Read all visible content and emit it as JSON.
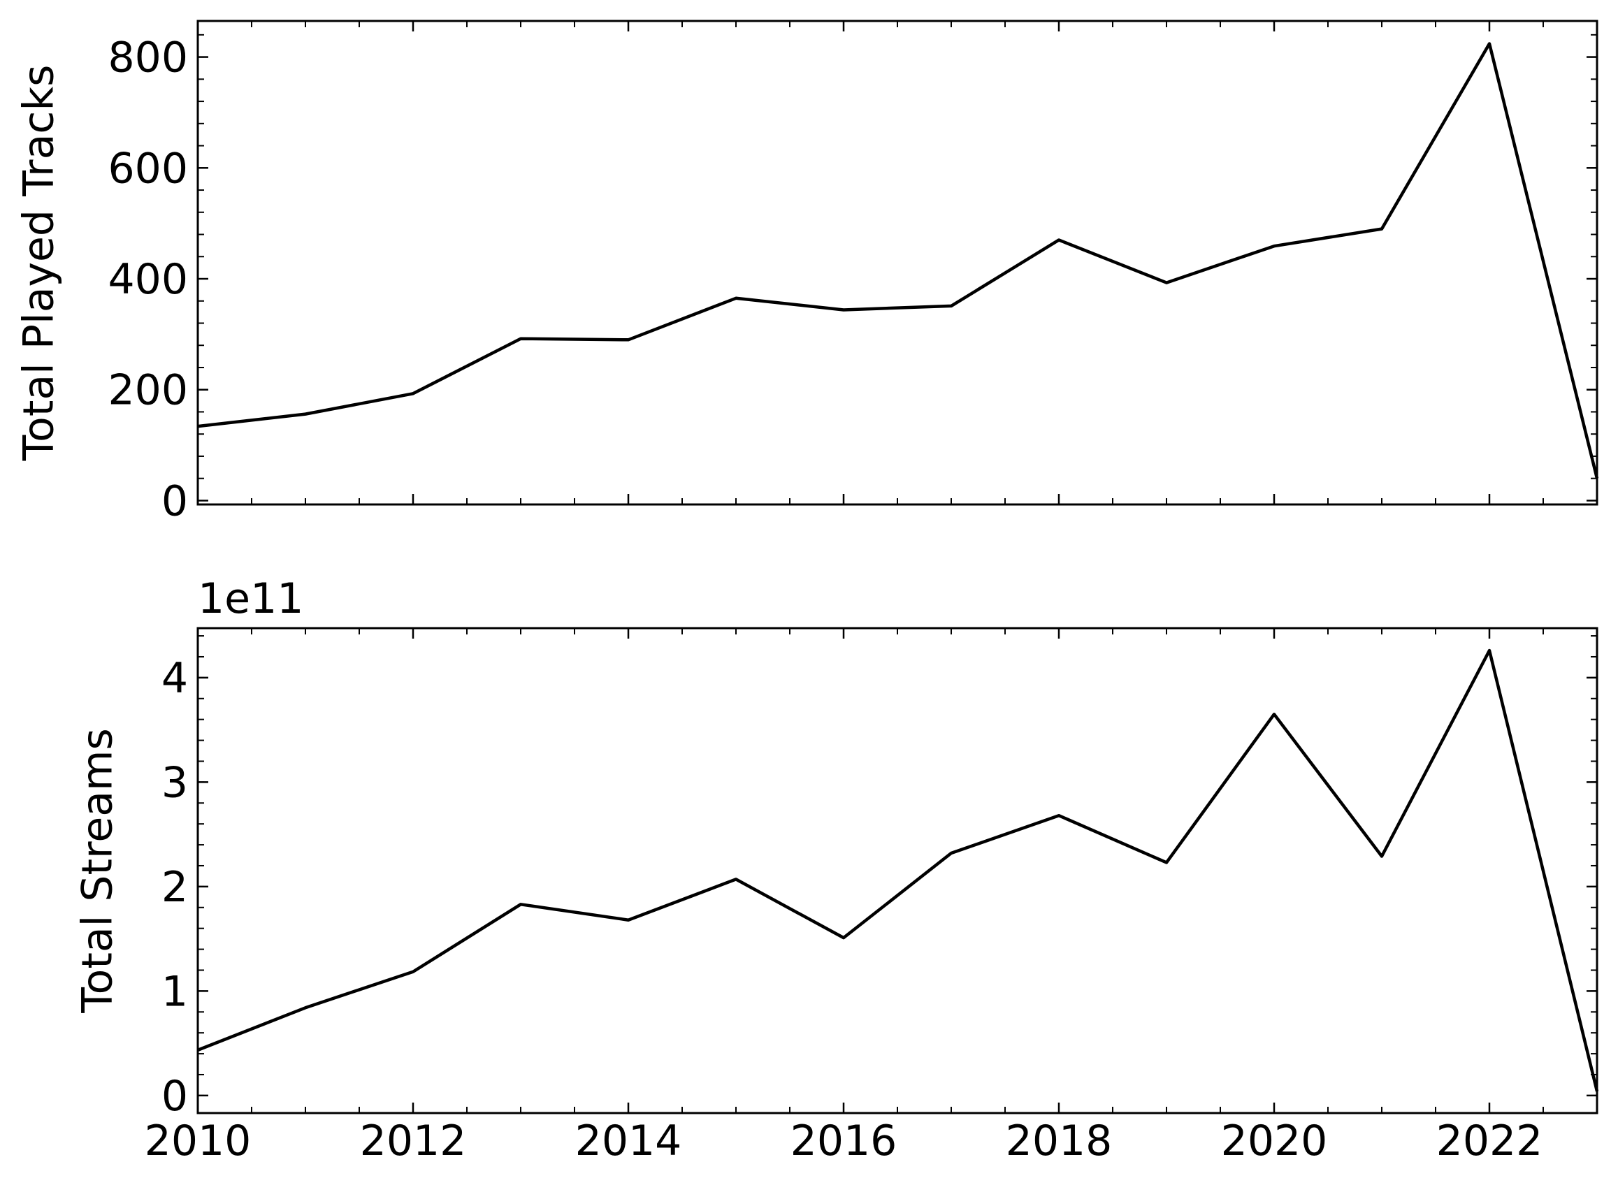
{
  "chart_data": [
    {
      "type": "line",
      "y_label": "Total Played Tracks",
      "x": [
        2010,
        2011,
        2012,
        2013,
        2014,
        2015,
        2016,
        2017,
        2018,
        2019,
        2020,
        2021,
        2022,
        2023
      ],
      "series": [
        {
          "color": "#000000",
          "values": [
            134,
            156,
            193,
            292,
            290,
            365,
            344,
            351,
            470,
            393,
            459,
            490,
            824,
            40
          ]
        }
      ],
      "xlim": [
        2010,
        2023
      ],
      "xticks": [],
      "xminor": 0.5,
      "ylim": [
        -7,
        865
      ],
      "yticks": [
        0,
        200,
        400,
        600,
        800
      ],
      "yminor": 40
    },
    {
      "type": "line",
      "y_label": "Total Streams",
      "offset_label": "1e11",
      "x": [
        2010,
        2011,
        2012,
        2013,
        2014,
        2015,
        2016,
        2017,
        2018,
        2019,
        2020,
        2021,
        2022,
        2023
      ],
      "series": [
        {
          "color": "#000000",
          "values": [
            0.435,
            0.84,
            1.185,
            1.83,
            1.68,
            2.07,
            1.51,
            2.32,
            2.68,
            2.23,
            3.65,
            2.29,
            4.26,
            0.04
          ]
        }
      ],
      "xlim": [
        2010,
        2023
      ],
      "xticks": [
        2010,
        2012,
        2014,
        2016,
        2018,
        2020,
        2022
      ],
      "xminor": 0.5,
      "ylim": [
        -0.168,
        4.474
      ],
      "yticks": [
        0,
        1,
        2,
        3,
        4
      ],
      "yminor": 0.2
    }
  ]
}
